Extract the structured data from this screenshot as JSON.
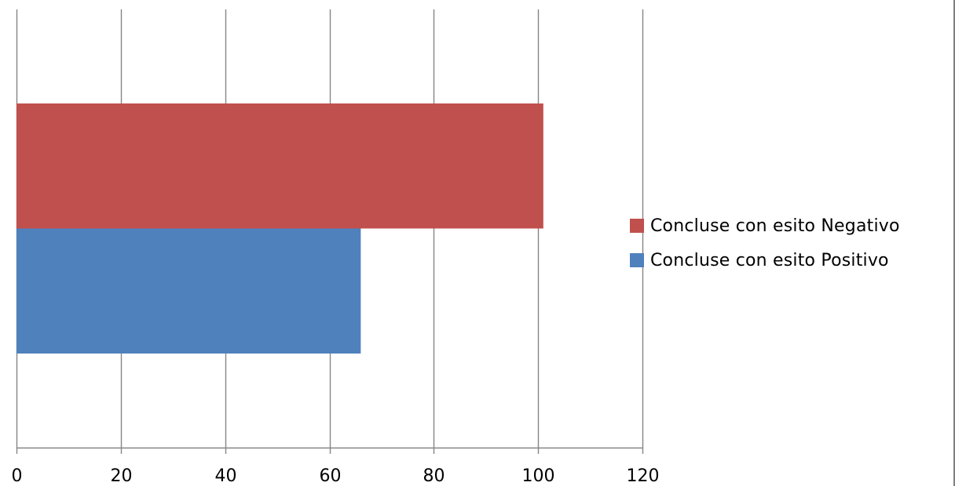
{
  "chart_data": {
    "type": "bar",
    "orientation": "horizontal",
    "title": "",
    "xlabel": "",
    "ylabel": "",
    "xlim": [
      0,
      120
    ],
    "x_ticks": [
      0,
      20,
      40,
      60,
      80,
      100,
      120
    ],
    "x_tick_labels": [
      "0",
      "20",
      "40",
      "60",
      "80",
      "100",
      "120"
    ],
    "categories": [
      ""
    ],
    "grid": "vertical",
    "legend_position": "right",
    "series": [
      {
        "name": "Concluse con esito Negativo",
        "color": "#C0504D",
        "values": [
          101
        ]
      },
      {
        "name": "Concluse con esito Positivo",
        "color": "#4F81BD",
        "values": [
          66
        ]
      }
    ]
  },
  "legend": {
    "items": [
      {
        "label": "Concluse con esito Negativo",
        "color": "#C0504D"
      },
      {
        "label": "Concluse con esito Positivo",
        "color": "#4F81BD"
      }
    ]
  }
}
